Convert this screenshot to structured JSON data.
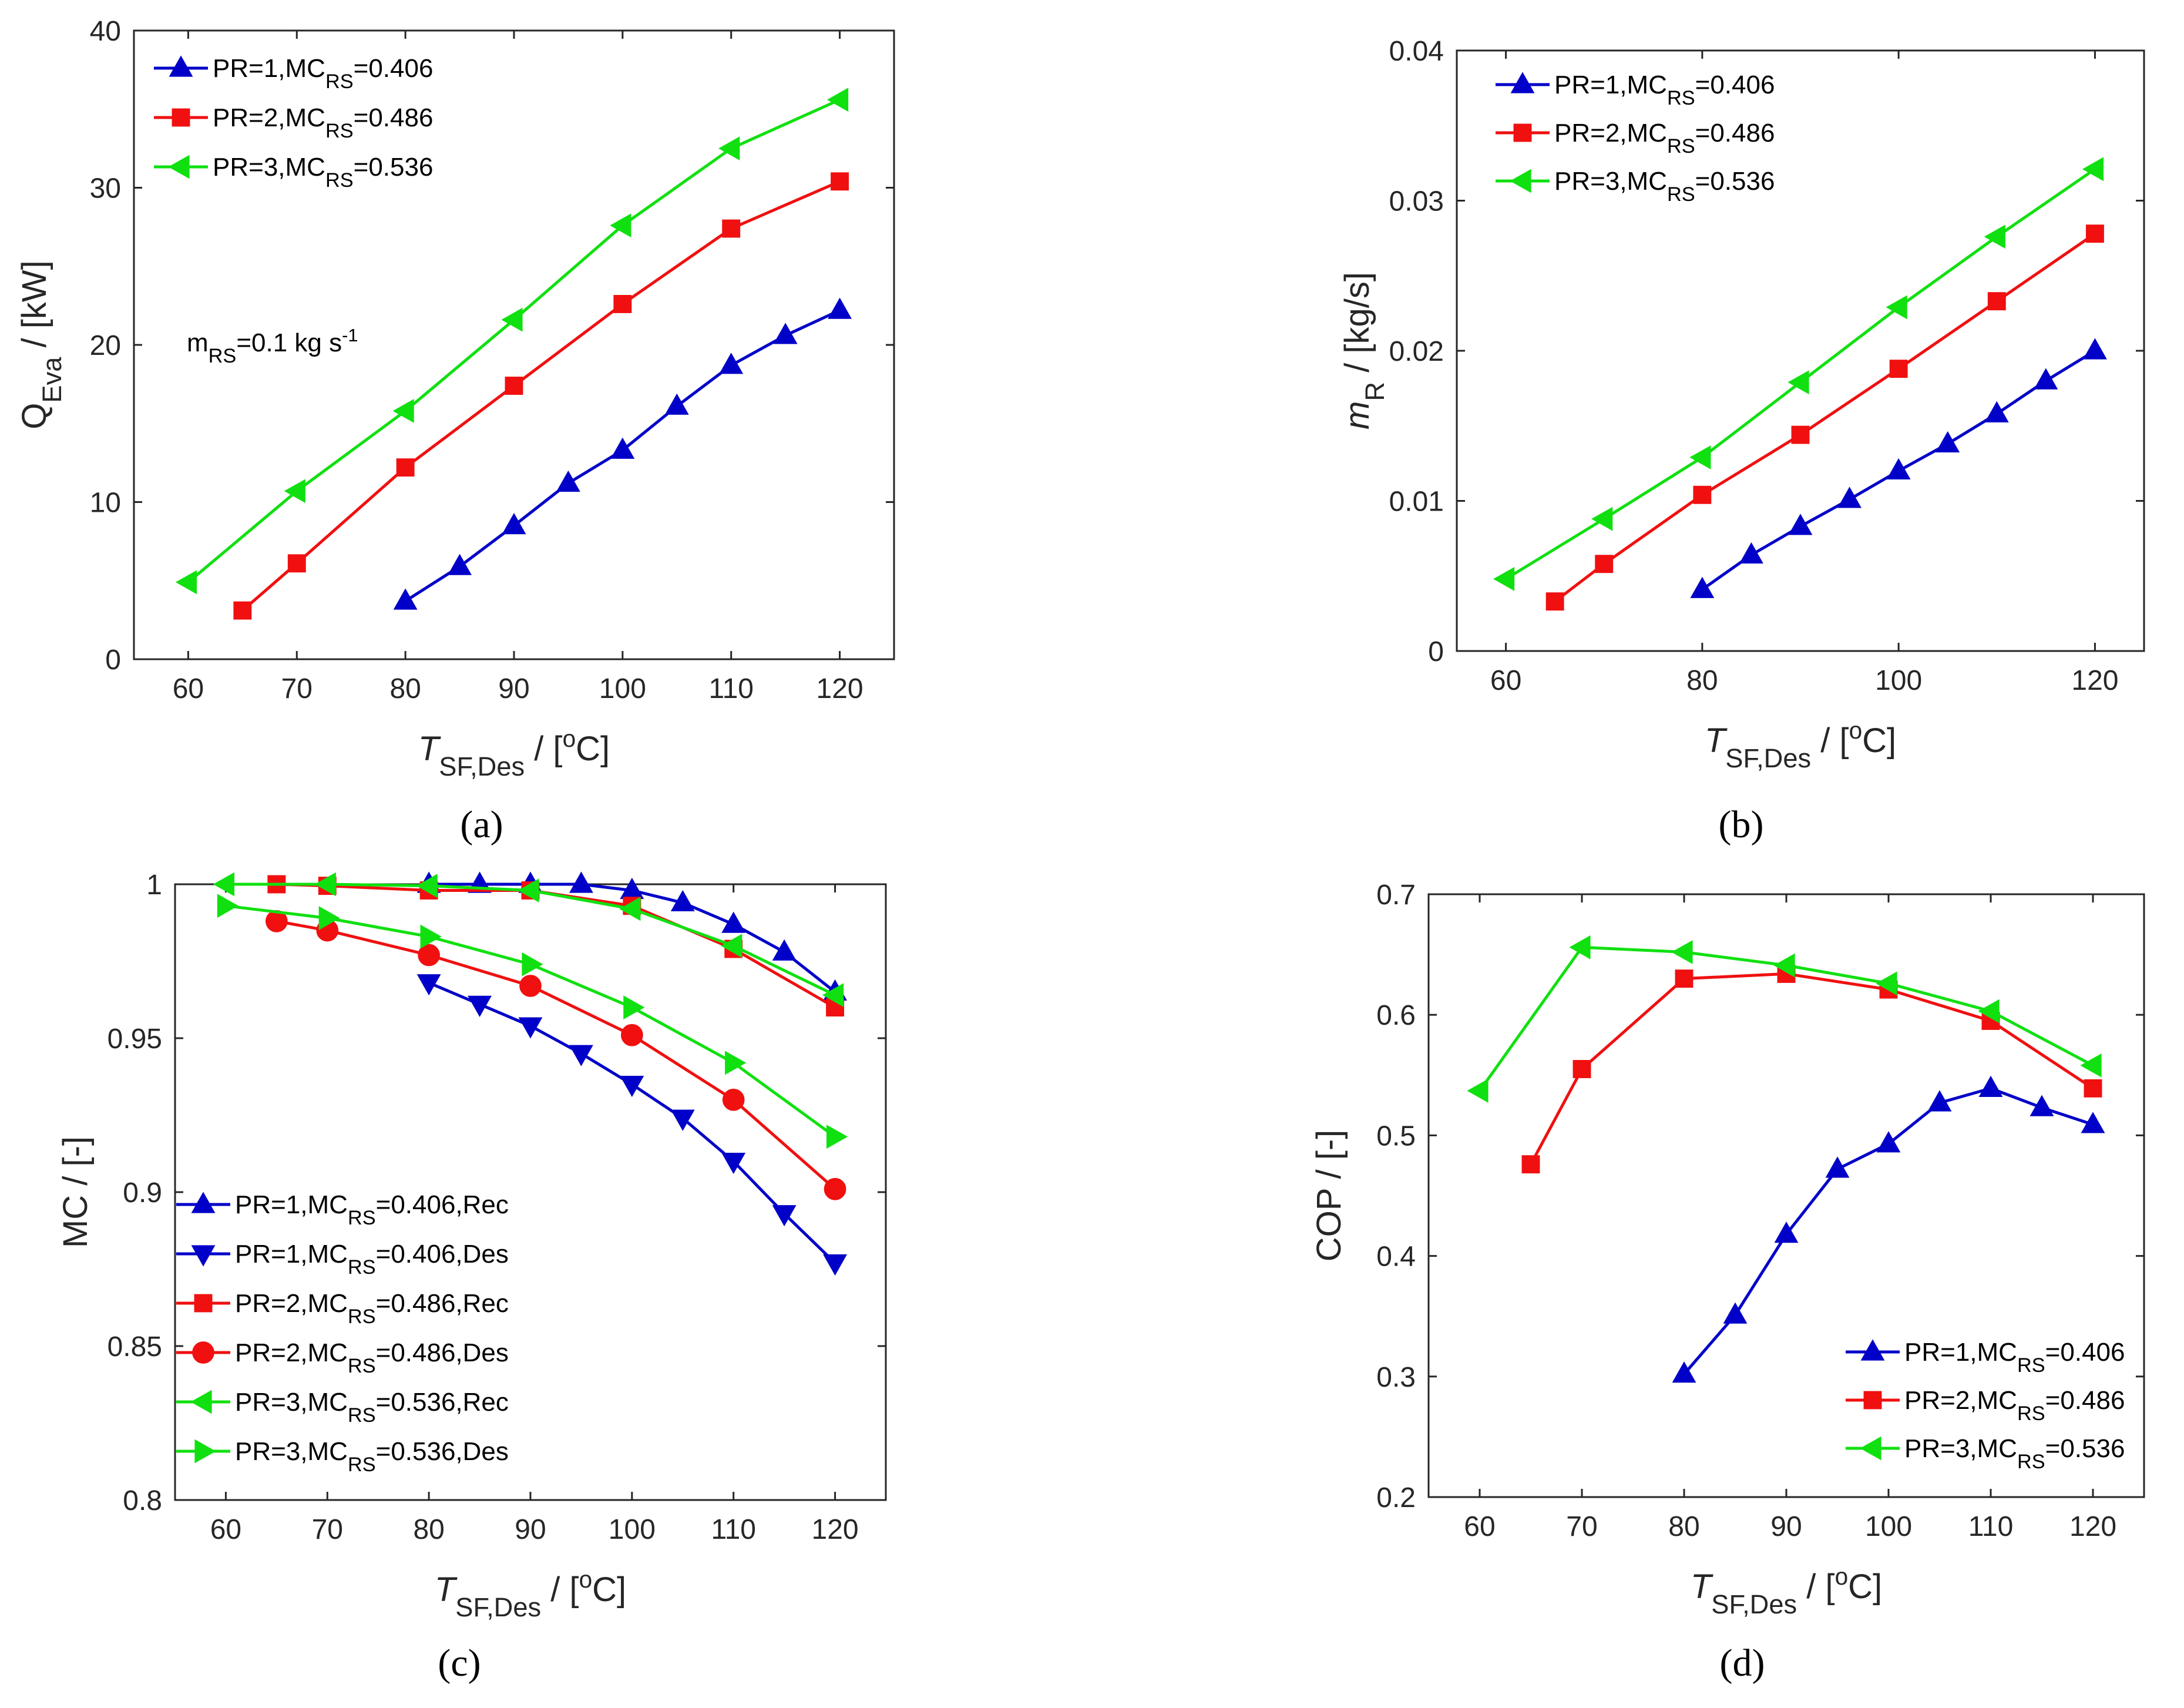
{
  "chart_data": [
    {
      "panel": "(a)",
      "type": "line",
      "title": "",
      "xlabel": {
        "main": "T",
        "sub": "SF,Des",
        "rest": " / [",
        "sup": "o",
        "end": "C]"
      },
      "ylabel": {
        "main": "Q",
        "sub": "Eva",
        "rest": " / [kW]"
      },
      "xlim": [
        55,
        125
      ],
      "ylim": [
        0,
        40
      ],
      "xticks": [
        60,
        70,
        80,
        90,
        100,
        110,
        120
      ],
      "yticks": [
        0,
        10,
        20,
        30,
        40
      ],
      "legend_position": "top-left",
      "annotation": {
        "main": "m",
        "sub": "RS",
        "rest": "=0.1 kg s",
        "sup": "-1"
      },
      "series": [
        {
          "name": "PR=1,MC_RS=0.406",
          "label": {
            "a": "PR=1,MC",
            "sub": "RS",
            "b": "=0.406"
          },
          "color": "#0000c8",
          "marker": "triangle-up",
          "x": [
            80,
            85,
            90,
            95,
            100,
            105,
            110,
            115,
            120
          ],
          "y": [
            3.7,
            5.9,
            8.5,
            11.2,
            13.3,
            16.1,
            18.7,
            20.6,
            22.2
          ]
        },
        {
          "name": "PR=2,MC_RS=0.486",
          "label": {
            "a": "PR=2,MC",
            "sub": "RS",
            "b": "=0.486"
          },
          "color": "#f01010",
          "marker": "square",
          "x": [
            65,
            70,
            80,
            90,
            100,
            110,
            120
          ],
          "y": [
            3.1,
            6.1,
            12.2,
            17.4,
            22.6,
            27.4,
            30.4
          ]
        },
        {
          "name": "PR=3,MC_RS=0.536",
          "label": {
            "a": "PR=3,MC",
            "sub": "RS",
            "b": "=0.536"
          },
          "color": "#10e010",
          "marker": "triangle-left",
          "x": [
            60,
            70,
            80,
            90,
            100,
            110,
            120
          ],
          "y": [
            4.9,
            10.7,
            15.8,
            21.6,
            27.6,
            32.5,
            35.6
          ]
        }
      ]
    },
    {
      "panel": "(b)",
      "type": "line",
      "title": "",
      "xlabel": {
        "main": "T",
        "sub": "SF,Des",
        "rest": " / [",
        "sup": "o",
        "end": "C]"
      },
      "ylabel": {
        "main": "m",
        "sub": "R",
        "rest": " / [kg/s]"
      },
      "xlim": [
        55,
        125
      ],
      "ylim": [
        0,
        0.04
      ],
      "xticks": [
        60,
        80,
        100,
        120
      ],
      "yticks": [
        0,
        0.01,
        0.02,
        0.03,
        0.04
      ],
      "yticklabels": [
        "0",
        "0.01",
        "0.02",
        "0.03",
        "0.04"
      ],
      "legend_position": "top-left",
      "series": [
        {
          "name": "PR=1,MC_RS=0.406",
          "label": {
            "a": "PR=1,MC",
            "sub": "RS",
            "b": "=0.406"
          },
          "color": "#0000c8",
          "marker": "triangle-up",
          "x": [
            80,
            85,
            90,
            95,
            100,
            105,
            110,
            115,
            120
          ],
          "y": [
            0.0041,
            0.0064,
            0.0083,
            0.0101,
            0.012,
            0.0138,
            0.0158,
            0.018,
            0.02
          ]
        },
        {
          "name": "PR=2,MC_RS=0.486",
          "label": {
            "a": "PR=2,MC",
            "sub": "RS",
            "b": "=0.486"
          },
          "color": "#f01010",
          "marker": "square",
          "x": [
            65,
            70,
            80,
            90,
            100,
            110,
            120
          ],
          "y": [
            0.0033,
            0.0058,
            0.0104,
            0.0144,
            0.0188,
            0.0233,
            0.0278
          ]
        },
        {
          "name": "PR=3,MC_RS=0.536",
          "label": {
            "a": "PR=3,MC",
            "sub": "RS",
            "b": "=0.536"
          },
          "color": "#10e010",
          "marker": "triangle-left",
          "x": [
            60,
            70,
            80,
            90,
            100,
            110,
            120
          ],
          "y": [
            0.0048,
            0.0088,
            0.0129,
            0.0179,
            0.0229,
            0.0276,
            0.0321
          ]
        }
      ]
    },
    {
      "panel": "(c)",
      "type": "line",
      "title": "",
      "xlabel": {
        "main": "T",
        "sub": "SF,Des",
        "rest": " / [",
        "sup": "o",
        "end": "C]"
      },
      "ylabel": {
        "main": "MC / [-]",
        "sub": "",
        "rest": ""
      },
      "xlim": [
        55,
        125
      ],
      "ylim": [
        0.8,
        1.0
      ],
      "xticks": [
        60,
        70,
        80,
        90,
        100,
        110,
        120
      ],
      "yticks": [
        0.8,
        0.85,
        0.9,
        0.95,
        1.0
      ],
      "yticklabels": [
        "0.8",
        "0.85",
        "0.9",
        "0.95",
        "1"
      ],
      "legend_position": "bottom-left",
      "series": [
        {
          "name": "PR=1,MC_RS=0.406,Rec",
          "label": {
            "a": "PR=1,MC",
            "sub": "RS",
            "b": "=0.406,Rec"
          },
          "color": "#0000c8",
          "marker": "triangle-up",
          "x": [
            80,
            85,
            90,
            95,
            100,
            105,
            110,
            115,
            120
          ],
          "y": [
            1.0,
            1.0,
            1.0,
            1.0,
            0.998,
            0.994,
            0.987,
            0.978,
            0.965
          ]
        },
        {
          "name": "PR=1,MC_RS=0.406,Des",
          "label": {
            "a": "PR=1,MC",
            "sub": "RS",
            "b": "=0.406,Des"
          },
          "color": "#0000c8",
          "marker": "triangle-down",
          "x": [
            80,
            85,
            90,
            95,
            100,
            105,
            110,
            115,
            120
          ],
          "y": [
            0.968,
            0.961,
            0.954,
            0.945,
            0.935,
            0.924,
            0.91,
            0.893,
            0.877
          ]
        },
        {
          "name": "PR=2,MC_RS=0.486,Rec",
          "label": {
            "a": "PR=2,MC",
            "sub": "RS",
            "b": "=0.486,Rec"
          },
          "color": "#f01010",
          "marker": "square",
          "x": [
            65,
            70,
            80,
            90,
            100,
            110,
            120
          ],
          "y": [
            1.0,
            0.9995,
            0.998,
            0.998,
            0.993,
            0.979,
            0.96
          ]
        },
        {
          "name": "PR=2,MC_RS=0.486,Des",
          "label": {
            "a": "PR=2,MC",
            "sub": "RS",
            "b": "=0.486,Des"
          },
          "color": "#f01010",
          "marker": "circle",
          "x": [
            65,
            70,
            80,
            90,
            100,
            110,
            120
          ],
          "y": [
            0.988,
            0.985,
            0.977,
            0.967,
            0.951,
            0.93,
            0.901
          ]
        },
        {
          "name": "PR=3,MC_RS=0.536,Rec",
          "label": {
            "a": "PR=3,MC",
            "sub": "RS",
            "b": "=0.536,Rec"
          },
          "color": "#10e010",
          "marker": "triangle-left",
          "x": [
            60,
            70,
            80,
            90,
            100,
            110,
            120
          ],
          "y": [
            1.0,
            1.0,
            0.9995,
            0.998,
            0.992,
            0.98,
            0.964
          ]
        },
        {
          "name": "PR=3,MC_RS=0.536,Des",
          "label": {
            "a": "PR=3,MC",
            "sub": "RS",
            "b": "=0.536,Des"
          },
          "color": "#10e010",
          "marker": "triangle-right",
          "x": [
            60,
            70,
            80,
            90,
            100,
            110,
            120
          ],
          "y": [
            0.993,
            0.989,
            0.983,
            0.974,
            0.96,
            0.942,
            0.918
          ]
        }
      ]
    },
    {
      "panel": "(d)",
      "type": "line",
      "title": "",
      "xlabel": {
        "main": "T",
        "sub": "SF,Des",
        "rest": " / [",
        "sup": "o",
        "end": "C]"
      },
      "ylabel": {
        "main": "COP / [-]",
        "sub": "",
        "rest": ""
      },
      "xlim": [
        55,
        125
      ],
      "ylim": [
        0.2,
        0.7
      ],
      "xticks": [
        60,
        70,
        80,
        90,
        100,
        110,
        120
      ],
      "yticks": [
        0.2,
        0.3,
        0.4,
        0.5,
        0.6,
        0.7
      ],
      "yticklabels": [
        "0.2",
        "0.3",
        "0.4",
        "0.5",
        "0.6",
        "0.7"
      ],
      "legend_position": "bottom-right",
      "series": [
        {
          "name": "PR=1,MC_RS=0.406",
          "label": {
            "a": "PR=1,MC",
            "sub": "RS",
            "b": "=0.406"
          },
          "color": "#0000c8",
          "marker": "triangle-up",
          "x": [
            80,
            85,
            90,
            95,
            100,
            105,
            110,
            115,
            120
          ],
          "y": [
            0.302,
            0.351,
            0.418,
            0.472,
            0.493,
            0.527,
            0.539,
            0.523,
            0.509
          ]
        },
        {
          "name": "PR=2,MC_RS=0.486",
          "label": {
            "a": "PR=2,MC",
            "sub": "RS",
            "b": "=0.486"
          },
          "color": "#f01010",
          "marker": "square",
          "x": [
            65,
            70,
            80,
            90,
            100,
            110,
            120
          ],
          "y": [
            0.476,
            0.555,
            0.63,
            0.634,
            0.621,
            0.595,
            0.539
          ]
        },
        {
          "name": "PR=3,MC_RS=0.536",
          "label": {
            "a": "PR=3,MC",
            "sub": "RS",
            "b": "=0.536"
          },
          "color": "#10e010",
          "marker": "triangle-left",
          "x": [
            60,
            70,
            80,
            90,
            100,
            110,
            120
          ],
          "y": [
            0.537,
            0.656,
            0.652,
            0.641,
            0.626,
            0.603,
            0.558
          ]
        }
      ]
    }
  ]
}
